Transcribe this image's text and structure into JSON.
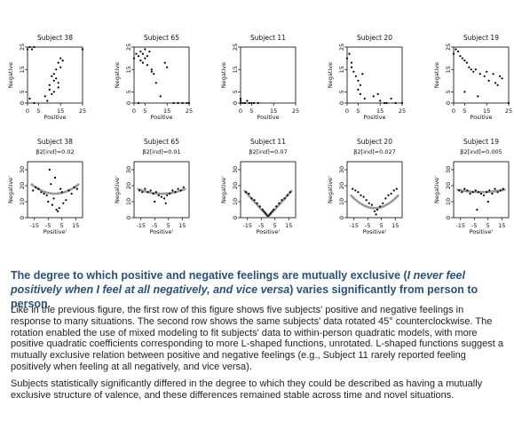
{
  "chart_data": [
    {
      "type": "scatter",
      "title": "Subject 38",
      "xlabel": "Positive",
      "ylabel": "Negative",
      "xlim": [
        0,
        25
      ],
      "ylim": [
        0,
        25
      ],
      "x": [
        0,
        1,
        2,
        3,
        8,
        10,
        10,
        11,
        12,
        12,
        13,
        13,
        14,
        14,
        15,
        15,
        16,
        25,
        1,
        3,
        9,
        11,
        12,
        14
      ],
      "y": [
        24,
        25,
        24,
        25,
        3,
        6,
        8,
        12,
        10,
        13,
        11,
        15,
        9,
        18,
        16,
        20,
        19,
        24,
        2,
        0,
        1,
        4,
        5,
        7
      ]
    },
    {
      "type": "scatter",
      "title": "Subject 65",
      "xlabel": "Positive",
      "ylabel": "Negative",
      "xlim": [
        0,
        25
      ],
      "ylim": [
        0,
        25
      ],
      "x": [
        0,
        1,
        2,
        3,
        3,
        4,
        4,
        5,
        5,
        6,
        6,
        7,
        8,
        9,
        10,
        12,
        14,
        18,
        20,
        22,
        25,
        2,
        8,
        15,
        24
      ],
      "y": [
        20,
        22,
        21,
        23,
        19,
        22,
        18,
        24,
        20,
        21,
        17,
        23,
        15,
        13,
        9,
        3,
        18,
        0,
        0,
        0,
        0,
        0,
        14,
        16,
        0
      ]
    },
    {
      "type": "scatter",
      "title": "Subject 11",
      "xlabel": "Positive",
      "ylabel": "Negative",
      "xlim": [
        0,
        25
      ],
      "ylim": [
        0,
        25
      ],
      "x": [
        0,
        0,
        0,
        1,
        2,
        3,
        4,
        5,
        6,
        8
      ],
      "y": [
        0,
        1,
        2,
        0,
        0,
        1,
        0,
        0,
        0,
        0
      ]
    },
    {
      "type": "scatter",
      "title": "Subject 20",
      "xlabel": "Positive",
      "ylabel": "Negative",
      "xlim": [
        0,
        25
      ],
      "ylim": [
        0,
        25
      ],
      "x": [
        0,
        1,
        2,
        2,
        3,
        4,
        5,
        5,
        6,
        6,
        7,
        8,
        12,
        14,
        15,
        17,
        18,
        20,
        22,
        25
      ],
      "y": [
        20,
        22,
        18,
        16,
        14,
        12,
        10,
        6,
        8,
        4,
        13,
        2,
        3,
        4,
        1,
        0,
        0,
        2,
        0,
        0
      ]
    },
    {
      "type": "scatter",
      "title": "Subject 19",
      "xlabel": "Positive",
      "ylabel": "Negative",
      "xlim": [
        0,
        25
      ],
      "ylim": [
        0,
        25
      ],
      "x": [
        0,
        1,
        2,
        3,
        4,
        5,
        6,
        7,
        8,
        9,
        10,
        12,
        14,
        15,
        16,
        18,
        19,
        20,
        21,
        22,
        25,
        5,
        11
      ],
      "y": [
        22,
        24,
        23,
        21,
        20,
        19,
        18,
        16,
        15,
        14,
        15,
        13,
        12,
        14,
        10,
        13,
        9,
        8,
        12,
        11,
        0,
        5,
        3
      ]
    },
    {
      "type": "scatter",
      "title": "Subject 38",
      "subtitle": "β2[ind]=0.02",
      "xlabel": "Positive'",
      "ylabel": "Negative'",
      "xlim": [
        -20,
        20
      ],
      "ylim": [
        0,
        35
      ],
      "x": [
        -16,
        -14,
        -12,
        -10,
        -8,
        -6,
        -5,
        -4,
        -3,
        -2,
        -1,
        0,
        1,
        2,
        3,
        4,
        5,
        6,
        8,
        10,
        12,
        14,
        16
      ],
      "y": [
        17,
        19,
        18,
        16,
        15,
        14,
        10,
        30,
        21,
        8,
        12,
        25,
        5,
        4,
        6,
        18,
        16,
        9,
        11,
        17,
        15,
        19,
        18
      ]
    },
    {
      "type": "scatter",
      "title": "Subject 65",
      "subtitle": "β2[ind]=0.01",
      "xlabel": "Positive'",
      "ylabel": "Negative'",
      "xlim": [
        -20,
        20
      ],
      "ylim": [
        0,
        35
      ],
      "x": [
        -16,
        -14,
        -12,
        -10,
        -8,
        -6,
        -4,
        -2,
        0,
        2,
        4,
        6,
        8,
        10,
        12,
        14,
        16,
        -5,
        3
      ],
      "y": [
        17,
        16,
        18,
        16,
        17,
        15,
        16,
        14,
        13,
        12,
        14,
        15,
        17,
        16,
        18,
        17,
        19,
        10,
        9
      ]
    },
    {
      "type": "scatter",
      "title": "Subject 11",
      "subtitle": "β2[ind]=0.07",
      "xlabel": "Positive'",
      "ylabel": "Negative'",
      "xlim": [
        -20,
        20
      ],
      "ylim": [
        0,
        35
      ],
      "x": [
        -16,
        -14,
        -12,
        -10,
        -8,
        -6,
        -4,
        -3,
        -2,
        -1,
        0,
        1,
        2,
        3,
        4,
        6,
        8,
        10,
        12,
        14,
        16
      ],
      "y": [
        16,
        15,
        12,
        11,
        9,
        7,
        5,
        4,
        3,
        2,
        1,
        2,
        3,
        4,
        5,
        7,
        9,
        11,
        12,
        14,
        16
      ]
    },
    {
      "type": "scatter",
      "title": "Subject 20",
      "subtitle": "β2[ind]=0.027",
      "xlabel": "Positive'",
      "ylabel": "Negative'",
      "xlim": [
        -20,
        20
      ],
      "ylim": [
        0,
        35
      ],
      "x": [
        -16,
        -14,
        -12,
        -10,
        -8,
        -6,
        -4,
        -2,
        0,
        1,
        2,
        4,
        6,
        8,
        10,
        12,
        14,
        16
      ],
      "y": [
        18,
        17,
        16,
        14,
        13,
        11,
        9,
        8,
        4,
        2,
        5,
        7,
        9,
        12,
        14,
        15,
        17,
        18
      ]
    },
    {
      "type": "scatter",
      "title": "Subject 19",
      "subtitle": "β2[ind]=0.005",
      "xlabel": "Positive'",
      "ylabel": "Negative'",
      "xlim": [
        -20,
        20
      ],
      "ylim": [
        0,
        35
      ],
      "x": [
        -16,
        -14,
        -12,
        -10,
        -8,
        -6,
        -4,
        -2,
        0,
        2,
        4,
        6,
        8,
        10,
        12,
        14,
        16,
        -3,
        5
      ],
      "y": [
        17,
        16,
        18,
        17,
        15,
        16,
        17,
        16,
        15,
        14,
        16,
        17,
        15,
        18,
        16,
        17,
        18,
        5,
        10
      ]
    }
  ],
  "axes": {
    "top_x_ticks": [
      "0",
      "5",
      "15",
      "25"
    ],
    "top_y_ticks": [
      "0",
      "5",
      "15",
      "25"
    ],
    "bottom_x_ticks": [
      "-15",
      "-5",
      "5",
      "15"
    ],
    "bottom_y_ticks": [
      "0",
      "10",
      "20",
      "30"
    ]
  },
  "text": {
    "headline_a": "The degree to which positive and negative feelings are mutually exclusive (",
    "headline_b": "I never feel positively when I feel at all negatively, and vice versa",
    "headline_c": ") varies significantly from person to person.",
    "para1": "Like in the previous figure, the first row of this figure shows five subjects' positive and negative feelings in response to many situations. The second row shows the same subjects' data rotated 45° counterclockwise. The rotation enabled the use of mixed modeling to fit subjects' data to within-person quadratic models, with more positive quadratic coefficients corresponding to more L-shaped functions, unrotated. L-shaped functions suggest a mutually exclusive relation between positive and negative feelings (e.g., Subject 11 rarely reported feeling positively when feeling at all negatively, and vice versa).",
    "para2": "Subjects statistically significantly differed in the degree to which they could be described as having a mutually exclusive structure of valence, and these differences remained stable across time and novel situations."
  },
  "colors": {
    "headline": "#2b4f78",
    "curve": "#9a9a9a",
    "points": "#000000"
  }
}
